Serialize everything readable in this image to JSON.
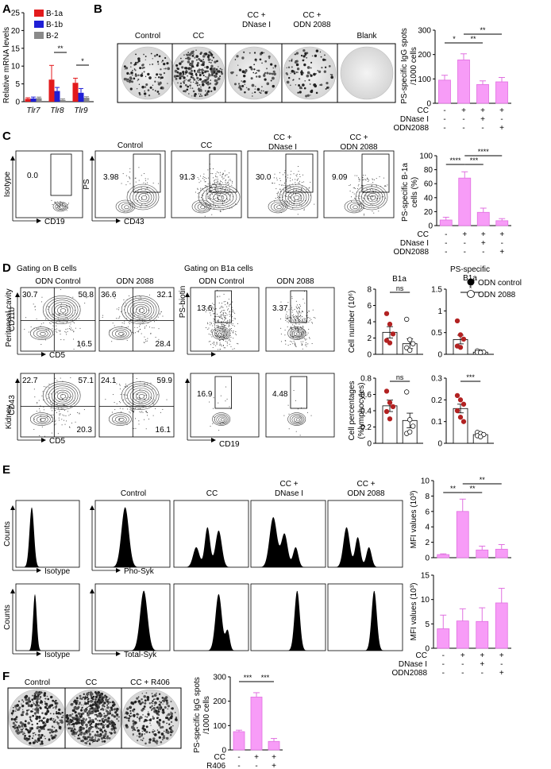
{
  "panels": {
    "a": "A",
    "b": "B",
    "c": "C",
    "d": "D",
    "e": "E",
    "f": "F"
  },
  "colors": {
    "b1a": "#e31a1c",
    "b1b": "#1f1fd6",
    "b2": "#8a8a8a",
    "bar_pink": "#f79cf7",
    "bar_edge": "#e070e0",
    "odn_control": "#b22222",
    "odn_2088": "#ffffff",
    "histogram": "#000000"
  },
  "panel_a": {
    "ylabel": "Relative mRNA levels",
    "legend": [
      "B-1a",
      "B-1b",
      "B-2"
    ],
    "categories": [
      "Tlr7",
      "Tlr8",
      "Tlr9"
    ],
    "sig": [
      "**",
      "*"
    ]
  },
  "panel_b": {
    "wells": [
      "Control",
      "CC",
      "CC +\nDNase I",
      "CC +\nODN 2088",
      "Blank"
    ],
    "ylabel": "PS-specific IgG spots\n/1000 cells",
    "sig": [
      "*",
      "**",
      "**"
    ],
    "rows": [
      {
        "label": "CC",
        "vals": [
          "-",
          "+",
          "+",
          "+"
        ]
      },
      {
        "label": "DNase I",
        "vals": [
          "-",
          "-",
          "+",
          "-"
        ]
      },
      {
        "label": "ODN2088",
        "vals": [
          "-",
          "-",
          "-",
          "+"
        ]
      }
    ]
  },
  "panel_c": {
    "plots": [
      {
        "title": "",
        "value": "0.0"
      },
      {
        "title": "Control",
        "value": "3.98"
      },
      {
        "title": "CC",
        "value": "91.3"
      },
      {
        "title": "CC +\nDNase I",
        "value": "30.0"
      },
      {
        "title": "CC +\nODN 2088",
        "value": "9.09"
      }
    ],
    "iso_y": "Isotype",
    "iso_x": "CD19",
    "y": "PS",
    "x": "CD43",
    "ylabel": "PS-specific B-1a\ncells (%)",
    "sig": [
      "****",
      "***",
      "****"
    ],
    "rows": [
      {
        "label": "CC",
        "vals": [
          "-",
          "+",
          "+",
          "+"
        ]
      },
      {
        "label": "DNase I",
        "vals": [
          "-",
          "-",
          "+",
          "-"
        ]
      },
      {
        "label": "ODN2088",
        "vals": [
          "-",
          "-",
          "-",
          "+"
        ]
      }
    ]
  },
  "panel_d": {
    "gate_b": "Gating on B cells",
    "gate_b1a": "Gating on B1a cells",
    "cols": [
      "ODN Control",
      "ODN 2088",
      "ODN Control",
      "ODN 2088"
    ],
    "row_labels": [
      "Peritoneal cavity",
      "Kidney"
    ],
    "pc_y": "CD11b",
    "kd_y": "CD43",
    "x_cd5": "CD5",
    "y_ps": "PS-biotin",
    "x_cd19": "CD19",
    "pc_ctrl": [
      "30.7",
      "50.8",
      "16.5"
    ],
    "pc_2088": [
      "36.6",
      "32.1",
      "28.4"
    ],
    "kd_ctrl": [
      "22.7",
      "57.1",
      "20.3"
    ],
    "kd_2088": [
      "24.1",
      "59.9",
      "16.1"
    ],
    "ps_vals": [
      "13.6",
      "3.37",
      "16.9",
      "4.48"
    ],
    "chart_titles": [
      "B1a",
      "PS-specific\nB1a"
    ],
    "ylabels": [
      "Cell number (10⁶)",
      "Cell percentages\n(%lymphocytes)"
    ],
    "sig": [
      "ns",
      "*",
      "ns",
      "***"
    ],
    "legend": [
      "ODN control",
      "ODN 2088"
    ]
  },
  "panel_e": {
    "titles": [
      "Control",
      "CC",
      "CC +\nDNase I",
      "CC +\nODN 2088"
    ],
    "y": "Counts",
    "iso": "Isotype",
    "x_top": "Pho-Syk",
    "x_bot": "Total-Syk",
    "ylabel": "MFI values (10³)",
    "sig": [
      "**",
      "**",
      "**"
    ],
    "rows": [
      {
        "label": "CC",
        "vals": [
          "-",
          "+",
          "+",
          "+"
        ]
      },
      {
        "label": "DNase I",
        "vals": [
          "-",
          "-",
          "+",
          "-"
        ]
      },
      {
        "label": "ODN2088",
        "vals": [
          "-",
          "-",
          "-",
          "+"
        ]
      }
    ]
  },
  "panel_f": {
    "wells": [
      "Control",
      "CC",
      "CC + R406"
    ],
    "ylabel": "PS-specific IgG spots\n/1000 cells",
    "sig": [
      "***",
      "***"
    ],
    "rows": [
      {
        "label": "CC",
        "vals": [
          "-",
          "+",
          "+"
        ]
      },
      {
        "label": "R406",
        "vals": [
          "-",
          "-",
          "+"
        ]
      }
    ]
  },
  "chart_data": [
    {
      "type": "bar",
      "ylim": [
        0,
        25
      ],
      "yticks": [
        0,
        5,
        10,
        15,
        20,
        25
      ],
      "categories": [
        "Tlr7",
        "Tlr8",
        "Tlr9"
      ],
      "series": [
        {
          "name": "B-1a",
          "values": [
            0.8,
            6.2,
            5.3
          ],
          "err": [
            0.3,
            4.0,
            1.3
          ]
        },
        {
          "name": "B-1b",
          "values": [
            0.9,
            3.0,
            2.5
          ],
          "err": [
            0.4,
            1.0,
            1.2
          ]
        },
        {
          "name": "B-2",
          "values": [
            1.0,
            0.5,
            1.1
          ],
          "err": [
            0.3,
            0.3,
            0.3
          ]
        }
      ]
    },
    {
      "type": "bar",
      "ylim": [
        0,
        300
      ],
      "yticks": [
        0,
        100,
        200,
        300
      ],
      "values": [
        95,
        178,
        77,
        88
      ],
      "err": [
        20,
        25,
        15,
        18
      ]
    },
    {
      "type": "bar",
      "ylim": [
        0,
        100
      ],
      "yticks": [
        0,
        20,
        40,
        60,
        80,
        100
      ],
      "values": [
        8,
        68,
        19,
        7
      ],
      "err": [
        4,
        9,
        6,
        3
      ]
    },
    {
      "type": "bar",
      "ylim": [
        0,
        8
      ],
      "yticks": [
        0,
        2,
        4,
        6,
        8
      ],
      "categories": [
        "ODN control",
        "ODN 2088"
      ],
      "values": [
        2.7,
        1.3
      ],
      "err": [
        0.7,
        0.6
      ],
      "points": [
        [
          5.0,
          3.7,
          2.5,
          1.7,
          1.4
        ],
        [
          4.3,
          1.8,
          1.3,
          0.8,
          0.5
        ]
      ]
    },
    {
      "type": "bar",
      "ylim": [
        0,
        1.5
      ],
      "yticks": [
        0,
        0.5,
        1.0,
        1.5
      ],
      "categories": [
        "ODN control",
        "ODN 2088"
      ],
      "values": [
        0.34,
        0.05
      ],
      "err": [
        0.1,
        0.01
      ],
      "points": [
        [
          0.77,
          0.45,
          0.35,
          0.19,
          0.16
        ],
        [
          0.08,
          0.06,
          0.05,
          0.045,
          0.04
        ]
      ]
    },
    {
      "type": "bar",
      "ylim": [
        0,
        0.8
      ],
      "yticks": [
        0,
        0.2,
        0.4,
        0.6,
        0.8
      ],
      "categories": [
        "ODN control",
        "ODN 2088"
      ],
      "values": [
        0.46,
        0.28
      ],
      "err": [
        0.07,
        0.09
      ],
      "points": [
        [
          0.64,
          0.5,
          0.45,
          0.39,
          0.3
        ],
        [
          0.63,
          0.29,
          0.21,
          0.12,
          0.14
        ]
      ]
    },
    {
      "type": "bar",
      "ylim": [
        0,
        0.3
      ],
      "yticks": [
        0,
        0.1,
        0.2,
        0.3
      ],
      "categories": [
        "ODN control",
        "ODN 2088"
      ],
      "values": [
        0.16,
        0.04
      ],
      "err": [
        0.02,
        0.01
      ],
      "points": [
        [
          0.22,
          0.2,
          0.18,
          0.15,
          0.12,
          0.1
        ],
        [
          0.05,
          0.045,
          0.04,
          0.035,
          0.03
        ]
      ]
    },
    {
      "type": "bar",
      "ylim": [
        0,
        10
      ],
      "yticks": [
        0,
        2,
        4,
        6,
        8,
        10
      ],
      "values": [
        0.4,
        6.0,
        1.0,
        1.1
      ],
      "err": [
        0.1,
        1.6,
        0.5,
        0.6
      ]
    },
    {
      "type": "bar",
      "ylim": [
        0,
        15
      ],
      "yticks": [
        0,
        5,
        10,
        15
      ],
      "values": [
        4.0,
        5.6,
        5.5,
        9.3
      ],
      "err": [
        2.8,
        2.5,
        2.8,
        3.0
      ]
    },
    {
      "type": "bar",
      "ylim": [
        0,
        300
      ],
      "yticks": [
        0,
        100,
        200,
        300
      ],
      "values": [
        75,
        217,
        35
      ],
      "err": [
        6,
        18,
        12
      ]
    }
  ]
}
